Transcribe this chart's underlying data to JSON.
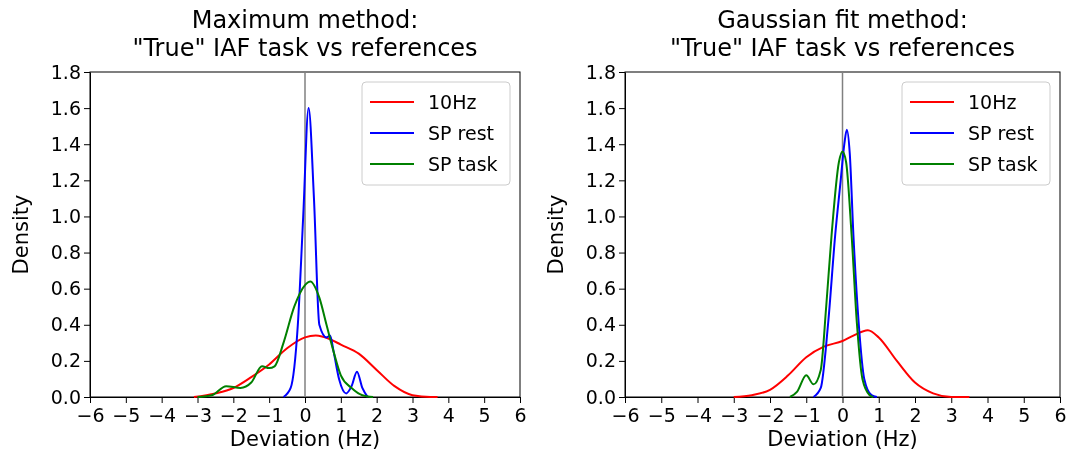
{
  "chart_data": [
    {
      "type": "line",
      "title": "Maximum method:\n\"True\" IAF task vs references",
      "xlabel": "Deviation (Hz)",
      "ylabel": "Density",
      "xlim": [
        -6,
        6
      ],
      "ylim": [
        0,
        1.8
      ],
      "xticks": [
        {
          "value": -6,
          "label": "−6"
        },
        {
          "value": -5,
          "label": "−5"
        },
        {
          "value": -4,
          "label": "−4"
        },
        {
          "value": -3,
          "label": "−3"
        },
        {
          "value": -2,
          "label": "−2"
        },
        {
          "value": -1,
          "label": "−1"
        },
        0,
        1,
        2,
        3,
        4,
        5,
        6
      ],
      "yticks": [
        {
          "value": 0,
          "label": "0.0"
        },
        {
          "value": 0.2,
          "label": "0.2"
        },
        {
          "value": 0.4,
          "label": "0.4"
        },
        {
          "value": 0.6,
          "label": "0.6"
        },
        {
          "value": 0.8,
          "label": "0.8"
        },
        {
          "value": 1,
          "label": "1.0"
        },
        {
          "value": 1.2,
          "label": "1.2"
        },
        {
          "value": 1.4,
          "label": "1.4"
        },
        {
          "value": 1.6,
          "label": "1.6"
        },
        {
          "value": 1.8,
          "label": "1.8"
        }
      ],
      "legend": "top right",
      "grid": false,
      "ref_lines": [
        {
          "axis": "x",
          "value": 0,
          "color": "#808080"
        }
      ],
      "series": [
        {
          "name": "10Hz",
          "color": "#ff0000",
          "x": [
            -3.1,
            -2.5,
            -2,
            -1.5,
            -1,
            -0.5,
            0,
            0.3,
            0.7,
            1,
            1.5,
            2,
            2.5,
            3,
            3.5,
            3.7
          ],
          "values": [
            0,
            0.02,
            0.05,
            0.11,
            0.18,
            0.27,
            0.33,
            0.34,
            0.32,
            0.29,
            0.24,
            0.15,
            0.06,
            0.01,
            0,
            0
          ]
        },
        {
          "name": "SP rest",
          "color": "#0000ff",
          "x": [
            -0.6,
            -0.4,
            -0.2,
            -0.05,
            0.1,
            0.25,
            0.4,
            0.6,
            0.7,
            0.8,
            0.95,
            1.15,
            1.3,
            1.45,
            1.6,
            1.75
          ],
          "values": [
            0,
            0.05,
            0.4,
            1.0,
            1.6,
            1.1,
            0.4,
            0.33,
            0.34,
            0.25,
            0.1,
            0.02,
            0.06,
            0.14,
            0.05,
            0
          ]
        },
        {
          "name": "SP task",
          "color": "#008000",
          "x": [
            -3,
            -2.6,
            -2.2,
            -1.8,
            -1.5,
            -1.2,
            -1,
            -0.85,
            -0.6,
            -0.3,
            0,
            0.15,
            0.4,
            0.6,
            0.8,
            1,
            1.3,
            1.6,
            1.9
          ],
          "values": [
            0,
            0.01,
            0.06,
            0.05,
            0.08,
            0.17,
            0.16,
            0.17,
            0.3,
            0.5,
            0.62,
            0.64,
            0.55,
            0.4,
            0.25,
            0.12,
            0.05,
            0.01,
            0
          ]
        }
      ]
    },
    {
      "type": "line",
      "title": "Gaussian fit method:\n\"True\" IAF task vs references",
      "xlabel": "Deviation (Hz)",
      "ylabel": "Density",
      "xlim": [
        -6,
        6
      ],
      "ylim": [
        0,
        1.8
      ],
      "xticks": [
        {
          "value": -6,
          "label": "−6"
        },
        {
          "value": -5,
          "label": "−5"
        },
        {
          "value": -4,
          "label": "−4"
        },
        {
          "value": -3,
          "label": "−3"
        },
        {
          "value": -2,
          "label": "−2"
        },
        {
          "value": -1,
          "label": "−1"
        },
        0,
        1,
        2,
        3,
        4,
        5,
        6
      ],
      "yticks": [
        {
          "value": 0,
          "label": "0.0"
        },
        {
          "value": 0.2,
          "label": "0.2"
        },
        {
          "value": 0.4,
          "label": "0.4"
        },
        {
          "value": 0.6,
          "label": "0.6"
        },
        {
          "value": 0.8,
          "label": "0.8"
        },
        {
          "value": 1,
          "label": "1.0"
        },
        {
          "value": 1.2,
          "label": "1.2"
        },
        {
          "value": 1.4,
          "label": "1.4"
        },
        {
          "value": 1.6,
          "label": "1.6"
        },
        {
          "value": 1.8,
          "label": "1.8"
        }
      ],
      "legend": "top right",
      "grid": false,
      "ref_lines": [
        {
          "axis": "x",
          "value": 0,
          "color": "#808080"
        }
      ],
      "series": [
        {
          "name": "10Hz",
          "color": "#ff0000",
          "x": [
            -3,
            -2.5,
            -2,
            -1.5,
            -1,
            -0.5,
            0,
            0.3,
            0.7,
            1,
            1.5,
            2,
            2.5,
            3,
            3.5
          ],
          "values": [
            0,
            0.01,
            0.04,
            0.12,
            0.22,
            0.28,
            0.31,
            0.34,
            0.37,
            0.33,
            0.2,
            0.08,
            0.02,
            0,
            0
          ]
        },
        {
          "name": "SP rest",
          "color": "#0000ff",
          "x": [
            -0.8,
            -0.6,
            -0.4,
            -0.2,
            -0.05,
            0.05,
            0.12,
            0.2,
            0.3,
            0.45,
            0.6,
            0.8,
            0.95
          ],
          "values": [
            0,
            0.05,
            0.4,
            0.9,
            1.2,
            1.4,
            1.48,
            1.35,
            0.9,
            0.4,
            0.1,
            0.01,
            0
          ]
        },
        {
          "name": "SP task",
          "color": "#008000",
          "x": [
            -1.45,
            -1.25,
            -1,
            -0.8,
            -0.6,
            -0.45,
            -0.3,
            -0.1,
            0,
            0.1,
            0.25,
            0.4,
            0.55,
            0.75,
            0.85
          ],
          "values": [
            0,
            0.03,
            0.12,
            0.07,
            0.15,
            0.5,
            0.9,
            1.3,
            1.36,
            1.3,
            0.9,
            0.4,
            0.1,
            0.01,
            0
          ]
        }
      ]
    }
  ]
}
